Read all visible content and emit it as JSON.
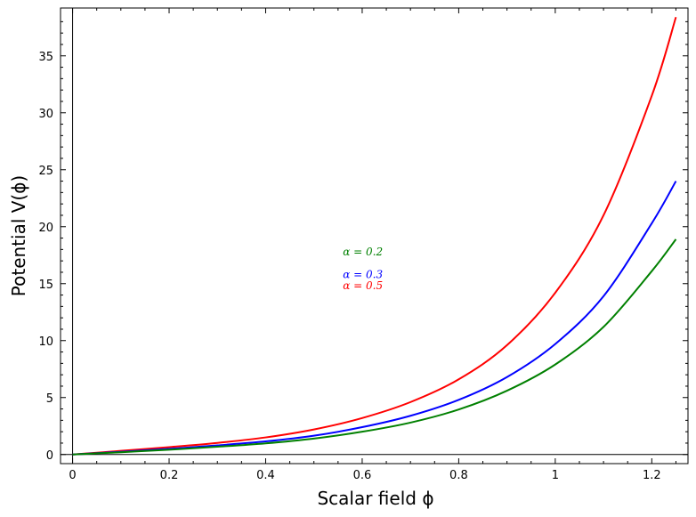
{
  "chart_data": {
    "type": "line",
    "xlabel": "Scalar field ϕ",
    "ylabel": "Potential V(ϕ)",
    "xlim": [
      -0.025,
      1.275
    ],
    "ylim": [
      -0.8,
      39.2
    ],
    "x_ticks": [
      {
        "value": 0,
        "label": "0"
      },
      {
        "value": 0.2,
        "label": "0.2"
      },
      {
        "value": 0.4,
        "label": "0.4"
      },
      {
        "value": 0.6,
        "label": "0.6"
      },
      {
        "value": 0.8,
        "label": "0.8"
      },
      {
        "value": 1.0,
        "label": "1"
      },
      {
        "value": 1.2,
        "label": "1.2"
      }
    ],
    "y_ticks": [
      {
        "value": 0,
        "label": "0"
      },
      {
        "value": 5,
        "label": "5"
      },
      {
        "value": 10,
        "label": "10"
      },
      {
        "value": 15,
        "label": "15"
      },
      {
        "value": 20,
        "label": "20"
      },
      {
        "value": 25,
        "label": "25"
      },
      {
        "value": 30,
        "label": "30"
      },
      {
        "value": 35,
        "label": "35"
      }
    ],
    "grid": false,
    "x": [
      0,
      0.1,
      0.2,
      0.3,
      0.4,
      0.5,
      0.6,
      0.7,
      0.8,
      0.9,
      1.0,
      1.1,
      1.2,
      1.25
    ],
    "series": [
      {
        "color": "#ff0000",
        "values": [
          0,
          0.32,
          0.65,
          1.02,
          1.5,
          2.2,
          3.2,
          4.6,
          6.6,
          9.6,
          14.2,
          21.0,
          31.5,
          38.4
        ]
      },
      {
        "color": "#0000ff",
        "values": [
          0,
          0.24,
          0.5,
          0.8,
          1.15,
          1.65,
          2.4,
          3.4,
          4.8,
          6.8,
          9.7,
          13.9,
          20.3,
          24.0
        ]
      },
      {
        "color": "#008000",
        "values": [
          0,
          0.2,
          0.42,
          0.68,
          0.98,
          1.4,
          2.0,
          2.8,
          3.95,
          5.6,
          7.9,
          11.2,
          16.1,
          18.9
        ]
      }
    ],
    "annotations": [
      {
        "text": "α = 0.2",
        "color": "#008000",
        "x": 0.56,
        "y": 17.5
      },
      {
        "text": "α = 0.3",
        "color": "#0000ff",
        "x": 0.56,
        "y": 15.5
      },
      {
        "text": "α = 0.5",
        "color": "#ff0000",
        "x": 0.56,
        "y": 14.5
      }
    ]
  }
}
